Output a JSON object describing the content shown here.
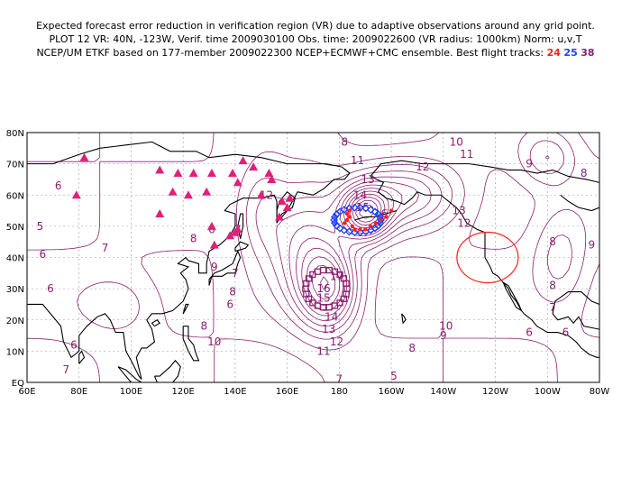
{
  "title": {
    "line1": "Expected forecast error reduction in verification region (VR) due to adaptive observations around any grid point.",
    "line2": "PLOT 12 VR: 40N, -123W, Verif. time 2009030100 Obs. time: 2009022600 (VR radius: 1000km) Norm: u,v,T",
    "line3_prefix": "NCEP/UM ETKF based on 177-member 2009022300 NCEP+ECMWF+CMC ensemble. Best flight tracks:",
    "tracks": [
      "24",
      "25",
      "38"
    ]
  },
  "axes": {
    "lat_labels": [
      "80N",
      "70N",
      "60N",
      "50N",
      "40N",
      "30N",
      "20N",
      "10N",
      "EQ"
    ],
    "lon_labels": [
      "60E",
      "80E",
      "100E",
      "120E",
      "140E",
      "160E",
      "180",
      "160W",
      "140W",
      "120W",
      "100W",
      "80W"
    ]
  },
  "map": {
    "lat_range": [
      0,
      80
    ],
    "lon_range_east": [
      60,
      280
    ],
    "contour_color": "#8a2070",
    "coast_color": "#000000",
    "track_colors": {
      "24": "#ff2020",
      "25": "#2040ff",
      "38": "#8a2070"
    },
    "raob_color": "#e0207a",
    "vr_color": "#ff2020",
    "vr_center": {
      "lat": 40,
      "lon": -123
    },
    "contour_labels": [
      {
        "text": "6",
        "lat": 63,
        "lon": 72
      },
      {
        "text": "5",
        "lat": 50,
        "lon": 65
      },
      {
        "text": "6",
        "lat": 41,
        "lon": 66
      },
      {
        "text": "7",
        "lat": 43,
        "lon": 90
      },
      {
        "text": "6",
        "lat": 30,
        "lon": 69
      },
      {
        "text": "6",
        "lat": 12,
        "lon": 78
      },
      {
        "text": "7",
        "lat": 4,
        "lon": 75
      },
      {
        "text": "8",
        "lat": 46,
        "lon": 124
      },
      {
        "text": "9",
        "lat": 37,
        "lon": 132
      },
      {
        "text": "7",
        "lat": 35,
        "lon": 140
      },
      {
        "text": "8",
        "lat": 29,
        "lon": 139
      },
      {
        "text": "6",
        "lat": 25,
        "lon": 138
      },
      {
        "text": "8",
        "lat": 18,
        "lon": 128
      },
      {
        "text": "10",
        "lat": 13,
        "lon": 132
      },
      {
        "text": "6",
        "lat": 49,
        "lon": 131
      },
      {
        "text": "7",
        "lat": 49,
        "lon": 141
      },
      {
        "text": "8",
        "lat": 77,
        "lon": 182
      },
      {
        "text": "11",
        "lat": 71,
        "lon": 187
      },
      {
        "text": "13",
        "lat": 65,
        "lon": 191
      },
      {
        "text": "14",
        "lat": 60,
        "lon": 188
      },
      {
        "text": "15",
        "lat": 56,
        "lon": 189
      },
      {
        "text": "16",
        "lat": 54,
        "lon": 196
      },
      {
        "text": "12",
        "lat": 60,
        "lon": 152
      },
      {
        "text": "12",
        "lat": 69,
        "lon": 212
      },
      {
        "text": "10",
        "lat": 77,
        "lon": 225
      },
      {
        "text": "11",
        "lat": 73,
        "lon": 229
      },
      {
        "text": "9",
        "lat": 70,
        "lon": 253
      },
      {
        "text": "8",
        "lat": 67,
        "lon": 274
      },
      {
        "text": "13",
        "lat": 55,
        "lon": 226
      },
      {
        "text": "12",
        "lat": 51,
        "lon": 228
      },
      {
        "text": "8",
        "lat": 45,
        "lon": 262
      },
      {
        "text": "9",
        "lat": 44,
        "lon": 277
      },
      {
        "text": "8",
        "lat": 31,
        "lon": 262
      },
      {
        "text": "7",
        "lat": 24,
        "lon": 262
      },
      {
        "text": "6",
        "lat": 16,
        "lon": 253
      },
      {
        "text": "6",
        "lat": 16,
        "lon": 267
      },
      {
        "text": "17",
        "lat": 34,
        "lon": 179
      },
      {
        "text": "16",
        "lat": 30,
        "lon": 174
      },
      {
        "text": "15",
        "lat": 27,
        "lon": 174
      },
      {
        "text": "14",
        "lat": 21,
        "lon": 177
      },
      {
        "text": "13",
        "lat": 17,
        "lon": 176
      },
      {
        "text": "12",
        "lat": 13,
        "lon": 179
      },
      {
        "text": "11",
        "lat": 10,
        "lon": 174
      },
      {
        "text": "10",
        "lat": 18,
        "lon": 221
      },
      {
        "text": "9",
        "lat": 15,
        "lon": 220
      },
      {
        "text": "8",
        "lat": 11,
        "lon": 208
      },
      {
        "text": "7",
        "lat": 1,
        "lon": 180
      },
      {
        "text": "5",
        "lat": 2,
        "lon": 201
      }
    ]
  }
}
